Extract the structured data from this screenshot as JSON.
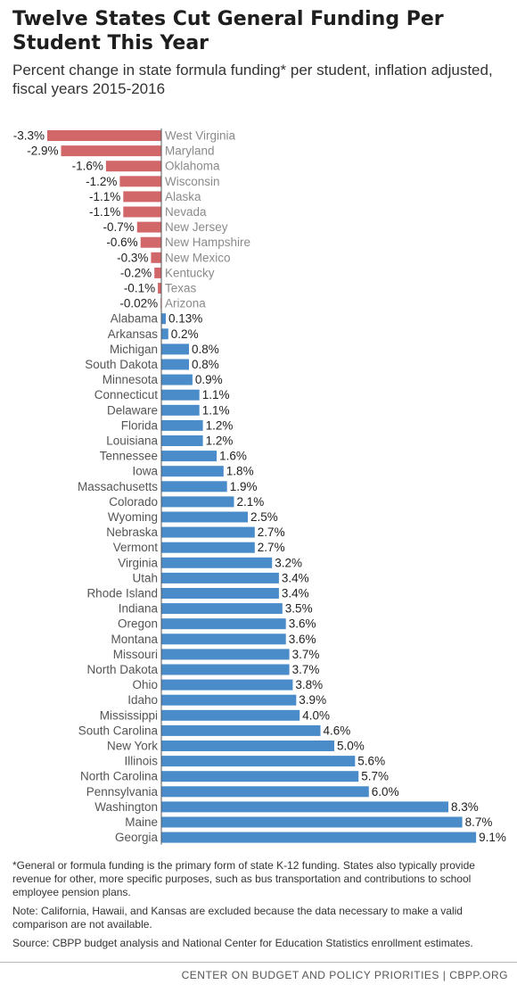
{
  "title": "Twelve States Cut General Funding Per Student This Year",
  "subtitle": "Percent change in state formula funding* per student, inflation adjusted, fiscal years 2015-2016",
  "colors": {
    "negative": "#d2676a",
    "positive": "#4a8bc9"
  },
  "chart_data": {
    "type": "bar",
    "orientation": "horizontal",
    "categories": [
      "West Virginia",
      "Maryland",
      "Oklahoma",
      "Wisconsin",
      "Alaska",
      "Nevada",
      "New Jersey",
      "New Hampshire",
      "New Mexico",
      "Kentucky",
      "Texas",
      "Arizona",
      "Alabama",
      "Arkansas",
      "Michigan",
      "South Dakota",
      "Minnesota",
      "Connecticut",
      "Delaware",
      "Florida",
      "Louisiana",
      "Tennessee",
      "Iowa",
      "Massachusetts",
      "Colorado",
      "Wyoming",
      "Nebraska",
      "Vermont",
      "Virginia",
      "Utah",
      "Rhode Island",
      "Indiana",
      "Oregon",
      "Montana",
      "Missouri",
      "North Dakota",
      "Ohio",
      "Idaho",
      "Mississippi",
      "South Carolina",
      "New York",
      "Illinois",
      "North Carolina",
      "Pennsylvania",
      "Washington",
      "Maine",
      "Georgia"
    ],
    "values": [
      -3.3,
      -2.9,
      -1.6,
      -1.2,
      -1.1,
      -1.1,
      -0.7,
      -0.6,
      -0.3,
      -0.2,
      -0.1,
      -0.02,
      0.13,
      0.2,
      0.8,
      0.8,
      0.9,
      1.1,
      1.1,
      1.2,
      1.2,
      1.6,
      1.8,
      1.9,
      2.1,
      2.5,
      2.7,
      2.7,
      3.2,
      3.4,
      3.4,
      3.5,
      3.6,
      3.6,
      3.7,
      3.7,
      3.8,
      3.9,
      4.0,
      4.6,
      5.0,
      5.6,
      5.7,
      6.0,
      8.3,
      8.7,
      9.1
    ],
    "labels": [
      "-3.3%",
      "-2.9%",
      "-1.6%",
      "-1.2%",
      "-1.1%",
      "-1.1%",
      "-0.7%",
      "-0.6%",
      "-0.3%",
      "-0.2%",
      "-0.1%",
      "-0.02%",
      "0.13%",
      "0.2%",
      "0.8%",
      "0.8%",
      "0.9%",
      "1.1%",
      "1.1%",
      "1.2%",
      "1.2%",
      "1.6%",
      "1.8%",
      "1.9%",
      "2.1%",
      "2.5%",
      "2.7%",
      "2.7%",
      "3.2%",
      "3.4%",
      "3.4%",
      "3.5%",
      "3.6%",
      "3.6%",
      "3.7%",
      "3.7%",
      "3.8%",
      "3.9%",
      "4.0%",
      "4.6%",
      "5.0%",
      "5.6%",
      "5.7%",
      "6.0%",
      "8.3%",
      "8.7%",
      "9.1%"
    ],
    "grid": false,
    "legend": "none"
  },
  "notes": {
    "footnote": "*General or formula funding is the primary form of state K-12 funding.  States also typically provide revenue for other, more specific purposes, such as bus transportation and contributions to school employee pension plans.",
    "note": "Note: California, Hawaii, and Kansas are excluded because the data necessary to make a valid comparison are not available.",
    "source": "Source: CBPP budget analysis and National Center for Education Statistics enrollment estimates."
  },
  "footer": "CENTER ON BUDGET AND POLICY PRIORITIES | CBPP.ORG"
}
